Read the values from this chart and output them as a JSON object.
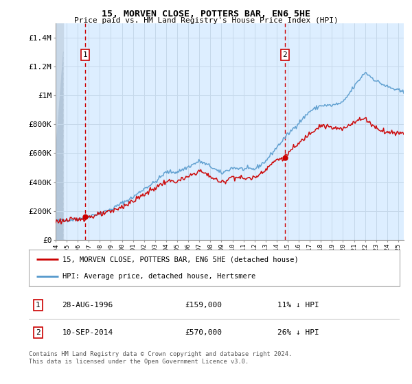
{
  "title": "15, MORVEN CLOSE, POTTERS BAR, EN6 5HE",
  "subtitle": "Price paid vs. HM Land Registry's House Price Index (HPI)",
  "sale1_price": 159000,
  "sale1_pct": "11% ↓ HPI",
  "sale1_display": "28-AUG-1996",
  "sale2_price": 570000,
  "sale2_pct": "26% ↓ HPI",
  "sale2_display": "10-SEP-2014",
  "hpi_color": "#5599cc",
  "price_color": "#cc0000",
  "marker_color": "#cc0000",
  "label_box_color": "#cc0000",
  "vline_color": "#cc0000",
  "grid_color": "#c5d8ea",
  "bg_color": "#ddeeff",
  "ylim": [
    0,
    1500000
  ],
  "yticks": [
    0,
    200000,
    400000,
    600000,
    800000,
    1000000,
    1200000,
    1400000
  ],
  "ylabel_map": {
    "0": "£0",
    "200000": "£200K",
    "400000": "£400K",
    "600000": "£600K",
    "800000": "£800K",
    "1000000": "£1M",
    "1200000": "£1.2M",
    "1400000": "£1.4M"
  },
  "xstart": 1994.0,
  "xend": 2025.5,
  "xticks": [
    1994,
    1995,
    1996,
    1997,
    1998,
    1999,
    2000,
    2001,
    2002,
    2003,
    2004,
    2005,
    2006,
    2007,
    2008,
    2009,
    2010,
    2011,
    2012,
    2013,
    2014,
    2015,
    2016,
    2017,
    2018,
    2019,
    2020,
    2021,
    2022,
    2023,
    2024,
    2025
  ],
  "legend_line1": "15, MORVEN CLOSE, POTTERS BAR, EN6 5HE (detached house)",
  "legend_line2": "HPI: Average price, detached house, Hertsmere",
  "footer": "Contains HM Land Registry data © Crown copyright and database right 2024.\nThis data is licensed under the Open Government Licence v3.0.",
  "hpi_anchors": [
    [
      1994.0,
      130000
    ],
    [
      1995.0,
      138000
    ],
    [
      1996.0,
      145000
    ],
    [
      1997.0,
      165000
    ],
    [
      1998.0,
      185000
    ],
    [
      1999.0,
      210000
    ],
    [
      2000.0,
      255000
    ],
    [
      2001.0,
      295000
    ],
    [
      2002.0,
      355000
    ],
    [
      2003.0,
      400000
    ],
    [
      2004.0,
      470000
    ],
    [
      2005.0,
      470000
    ],
    [
      2006.0,
      505000
    ],
    [
      2007.0,
      545000
    ],
    [
      2008.0,
      510000
    ],
    [
      2009.0,
      460000
    ],
    [
      2010.0,
      500000
    ],
    [
      2011.0,
      490000
    ],
    [
      2012.0,
      490000
    ],
    [
      2013.0,
      545000
    ],
    [
      2014.0,
      640000
    ],
    [
      2015.0,
      730000
    ],
    [
      2016.0,
      810000
    ],
    [
      2017.0,
      890000
    ],
    [
      2018.0,
      930000
    ],
    [
      2019.0,
      930000
    ],
    [
      2020.0,
      950000
    ],
    [
      2021.0,
      1060000
    ],
    [
      2022.0,
      1160000
    ],
    [
      2023.0,
      1100000
    ],
    [
      2024.0,
      1060000
    ],
    [
      2025.5,
      1020000
    ]
  ],
  "price_anchors": [
    [
      1994.0,
      130000
    ],
    [
      1995.0,
      135000
    ],
    [
      1996.0,
      142000
    ],
    [
      1997.0,
      160000
    ],
    [
      1998.0,
      175000
    ],
    [
      1999.0,
      195000
    ],
    [
      2000.0,
      230000
    ],
    [
      2001.0,
      268000
    ],
    [
      2002.0,
      315000
    ],
    [
      2003.0,
      360000
    ],
    [
      2004.0,
      405000
    ],
    [
      2005.0,
      405000
    ],
    [
      2006.0,
      435000
    ],
    [
      2007.0,
      480000
    ],
    [
      2008.0,
      440000
    ],
    [
      2009.0,
      395000
    ],
    [
      2010.0,
      440000
    ],
    [
      2011.0,
      425000
    ],
    [
      2012.0,
      430000
    ],
    [
      2013.0,
      490000
    ],
    [
      2014.0,
      555000
    ],
    [
      2014.75,
      570000
    ],
    [
      2015.0,
      600000
    ],
    [
      2016.0,
      665000
    ],
    [
      2017.0,
      740000
    ],
    [
      2018.0,
      795000
    ],
    [
      2019.0,
      775000
    ],
    [
      2020.0,
      765000
    ],
    [
      2021.0,
      820000
    ],
    [
      2022.0,
      840000
    ],
    [
      2023.0,
      775000
    ],
    [
      2024.0,
      745000
    ],
    [
      2025.5,
      740000
    ]
  ]
}
